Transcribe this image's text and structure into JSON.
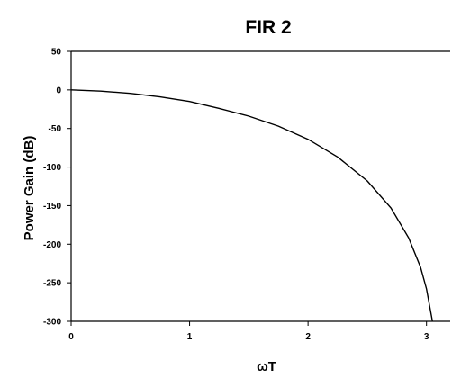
{
  "chart_data": {
    "type": "line",
    "title": "FIR 2",
    "xlabel": "ωT",
    "ylabel": "Power Gain (dB)",
    "xlim": [
      0,
      3.2
    ],
    "ylim": [
      -300,
      50
    ],
    "x_ticks": [
      0,
      1,
      2,
      3
    ],
    "y_ticks": [
      50,
      0,
      -50,
      -100,
      -150,
      -200,
      -250,
      -300
    ],
    "grid": false,
    "legend": "none",
    "series": [
      {
        "color": "#000000",
        "x": [
          0,
          0.25,
          0.5,
          0.75,
          1.0,
          1.25,
          1.5,
          1.75,
          2.0,
          2.25,
          2.5,
          2.7,
          2.85,
          2.95,
          3.0,
          3.05
        ],
        "y": [
          0,
          -1.5,
          -4.5,
          -9,
          -15,
          -24,
          -34,
          -47,
          -64,
          -87,
          -118,
          -153,
          -192,
          -230,
          -258,
          -300
        ]
      }
    ]
  }
}
